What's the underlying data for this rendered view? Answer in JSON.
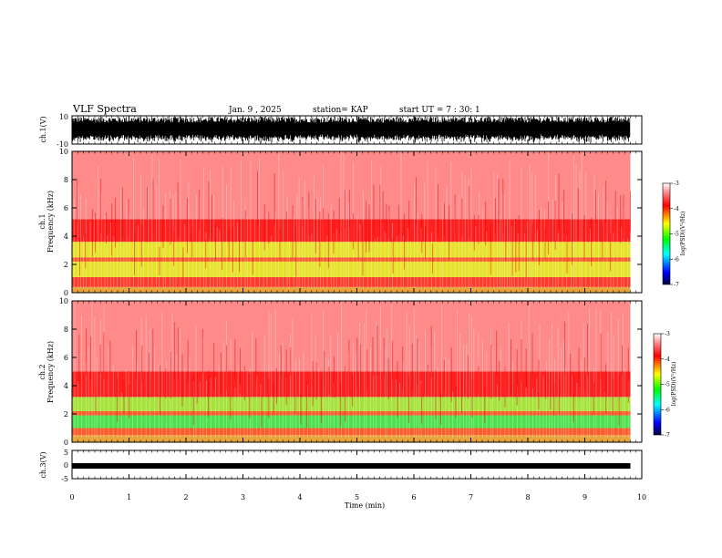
{
  "header": {
    "title": "VLF Spectra",
    "date": "Jan. 9 , 2025",
    "station": "station= KAP",
    "start": "start UT =  7 : 30: 1"
  },
  "chart_data": [
    {
      "type": "line",
      "name": "ch1-waveform",
      "ylabel": "ch.1(V)",
      "ylim": [
        -10,
        10
      ],
      "y_ticks": [
        "10",
        "-10"
      ],
      "xlim": [
        0,
        10
      ],
      "x_end": 9.8,
      "style": "dense saturated black waveform"
    },
    {
      "type": "heatmap",
      "name": "ch1-spectrogram",
      "ylabel_1": "ch.1",
      "ylabel_2": "Frequency  (kHz)",
      "ylim": [
        0,
        10
      ],
      "y_ticks": [
        0,
        2,
        4,
        6,
        8,
        10
      ],
      "xlim": [
        0,
        10
      ],
      "x_end": 9.8,
      "bands_khz": [
        {
          "from": 0.0,
          "to": 0.4,
          "color": "#e8a33a"
        },
        {
          "from": 0.4,
          "to": 1.1,
          "color": "#ff3a2a"
        },
        {
          "from": 1.1,
          "to": 2.2,
          "color": "#e6e22a"
        },
        {
          "from": 2.2,
          "to": 2.5,
          "color": "#ff5a2a"
        },
        {
          "from": 2.5,
          "to": 3.6,
          "color": "#e6e22a"
        },
        {
          "from": 3.6,
          "to": 5.2,
          "color": "#ff2020"
        },
        {
          "from": 5.2,
          "to": 10.0,
          "color": "#ff8a8a"
        }
      ],
      "colorbar": {
        "label": "log(PSD)(V²/Hz)",
        "ticks": [
          "-3",
          "-4",
          "-5",
          "-6",
          "-7"
        ],
        "range": [
          -7,
          -3
        ]
      }
    },
    {
      "type": "heatmap",
      "name": "ch2-spectrogram",
      "ylabel_1": "ch.2",
      "ylabel_2": "Frequency  (kHz)",
      "ylim": [
        0,
        10
      ],
      "y_ticks": [
        0,
        2,
        4,
        6,
        8,
        10
      ],
      "xlim": [
        0,
        10
      ],
      "x_end": 9.8,
      "bands_khz": [
        {
          "from": 0.0,
          "to": 0.5,
          "color": "#e8a33a"
        },
        {
          "from": 0.5,
          "to": 1.0,
          "color": "#ff5a2a"
        },
        {
          "from": 1.0,
          "to": 1.9,
          "color": "#4ee04e"
        },
        {
          "from": 1.9,
          "to": 2.2,
          "color": "#ff5a2a"
        },
        {
          "from": 2.2,
          "to": 3.2,
          "color": "#a6e23a"
        },
        {
          "from": 3.2,
          "to": 5.0,
          "color": "#ff2020"
        },
        {
          "from": 5.0,
          "to": 10.0,
          "color": "#ff8a8a"
        }
      ],
      "colorbar": {
        "label": "log(PSD)(V²/Hz)",
        "ticks": [
          "-3",
          "-4",
          "-5",
          "-6",
          "-7"
        ],
        "range": [
          -7,
          -3
        ]
      }
    },
    {
      "type": "line",
      "name": "ch3-waveform",
      "ylabel": "ch.3(V)",
      "ylim": [
        -5,
        5
      ],
      "y_ticks": [
        "5",
        "0",
        "-5"
      ],
      "value_level": 0,
      "xlim": [
        0,
        10
      ],
      "x_end": 9.8,
      "style": "thick black band near zero"
    }
  ],
  "xaxis": {
    "label": "Time  (min)",
    "ticks": [
      "0",
      "1",
      "2",
      "3",
      "4",
      "5",
      "6",
      "7",
      "8",
      "9",
      "10"
    ]
  }
}
